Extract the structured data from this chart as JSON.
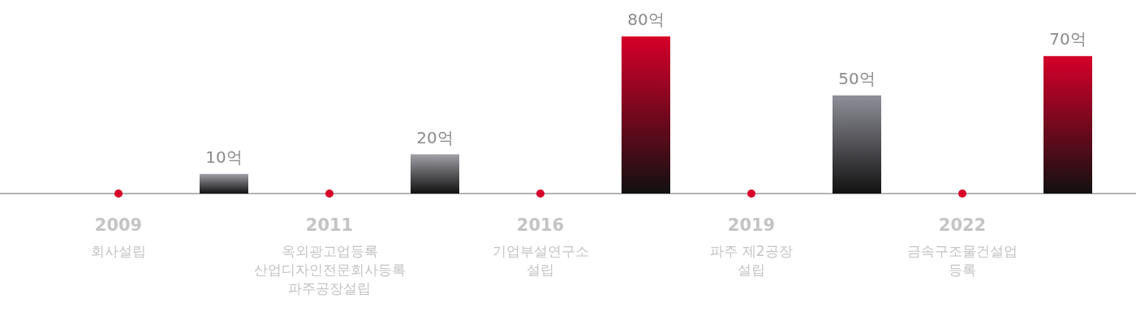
{
  "chart_data": {
    "type": "bar",
    "categories": [
      "2009",
      null,
      "2011",
      null,
      "2016",
      null,
      "2019",
      null,
      "2022",
      null
    ],
    "series": [
      {
        "values": [
          null,
          10,
          null,
          20,
          null,
          80,
          null,
          50,
          null,
          70
        ],
        "colors": [
          null,
          "#a0a0a6",
          null,
          "#a0a0a6",
          null,
          "#d6002a",
          null,
          "#8f8f99",
          null,
          "#d6002a"
        ],
        "value_labels": [
          null,
          "10억",
          null,
          "20억",
          null,
          "80억",
          null,
          "50억",
          null,
          "70억"
        ]
      },
      {
        "type": "scatter",
        "values": [
          0,
          null,
          0,
          null,
          0,
          null,
          0,
          null,
          0,
          null
        ],
        "color": "#d6002a"
      }
    ],
    "marker": "circle",
    "annotations": [
      "회사설립",
      "옥외광고업등록\n산업디자인전문회사등록\n파주공장설립",
      "기업부설연구소\n설립",
      "파주 제2공장\n설립",
      "금속구조물건설업\n등록"
    ]
  }
}
